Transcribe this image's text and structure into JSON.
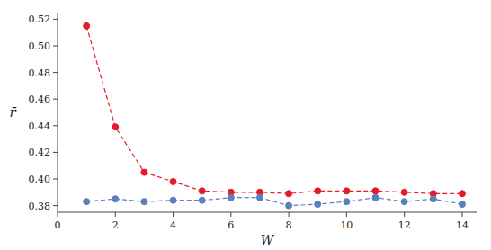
{
  "chart_data": {
    "type": "line",
    "xlabel": "W",
    "ylabel": "r̄",
    "x": [
      1,
      2,
      3,
      4,
      5,
      6,
      7,
      8,
      9,
      10,
      11,
      12,
      13,
      14
    ],
    "series": [
      {
        "color": "#e8192c",
        "marker": "circle",
        "line_style": "dashed",
        "values": [
          0.515,
          0.439,
          0.405,
          0.398,
          0.391,
          0.39,
          0.39,
          0.389,
          0.391,
          0.391,
          0.391,
          0.39,
          0.389,
          0.389
        ]
      },
      {
        "color": "#5b7fbd",
        "marker": "circle",
        "line_style": "dashed",
        "values": [
          0.383,
          0.385,
          0.383,
          0.384,
          0.384,
          0.386,
          0.386,
          0.38,
          0.381,
          0.383,
          0.386,
          0.383,
          0.385,
          0.381
        ]
      }
    ],
    "xlim": [
      0,
      14.5
    ],
    "ylim": [
      0.375,
      0.525
    ],
    "xticks": [
      0,
      2,
      4,
      6,
      8,
      10,
      12,
      14
    ],
    "yticks": [
      0.38,
      {
        "value": 0.4,
        "label": "0.40"
      },
      0.42,
      0.44,
      0.46,
      0.48,
      {
        "value": 0.5,
        "label": "0.50"
      },
      0.52
    ],
    "grid": false
  }
}
